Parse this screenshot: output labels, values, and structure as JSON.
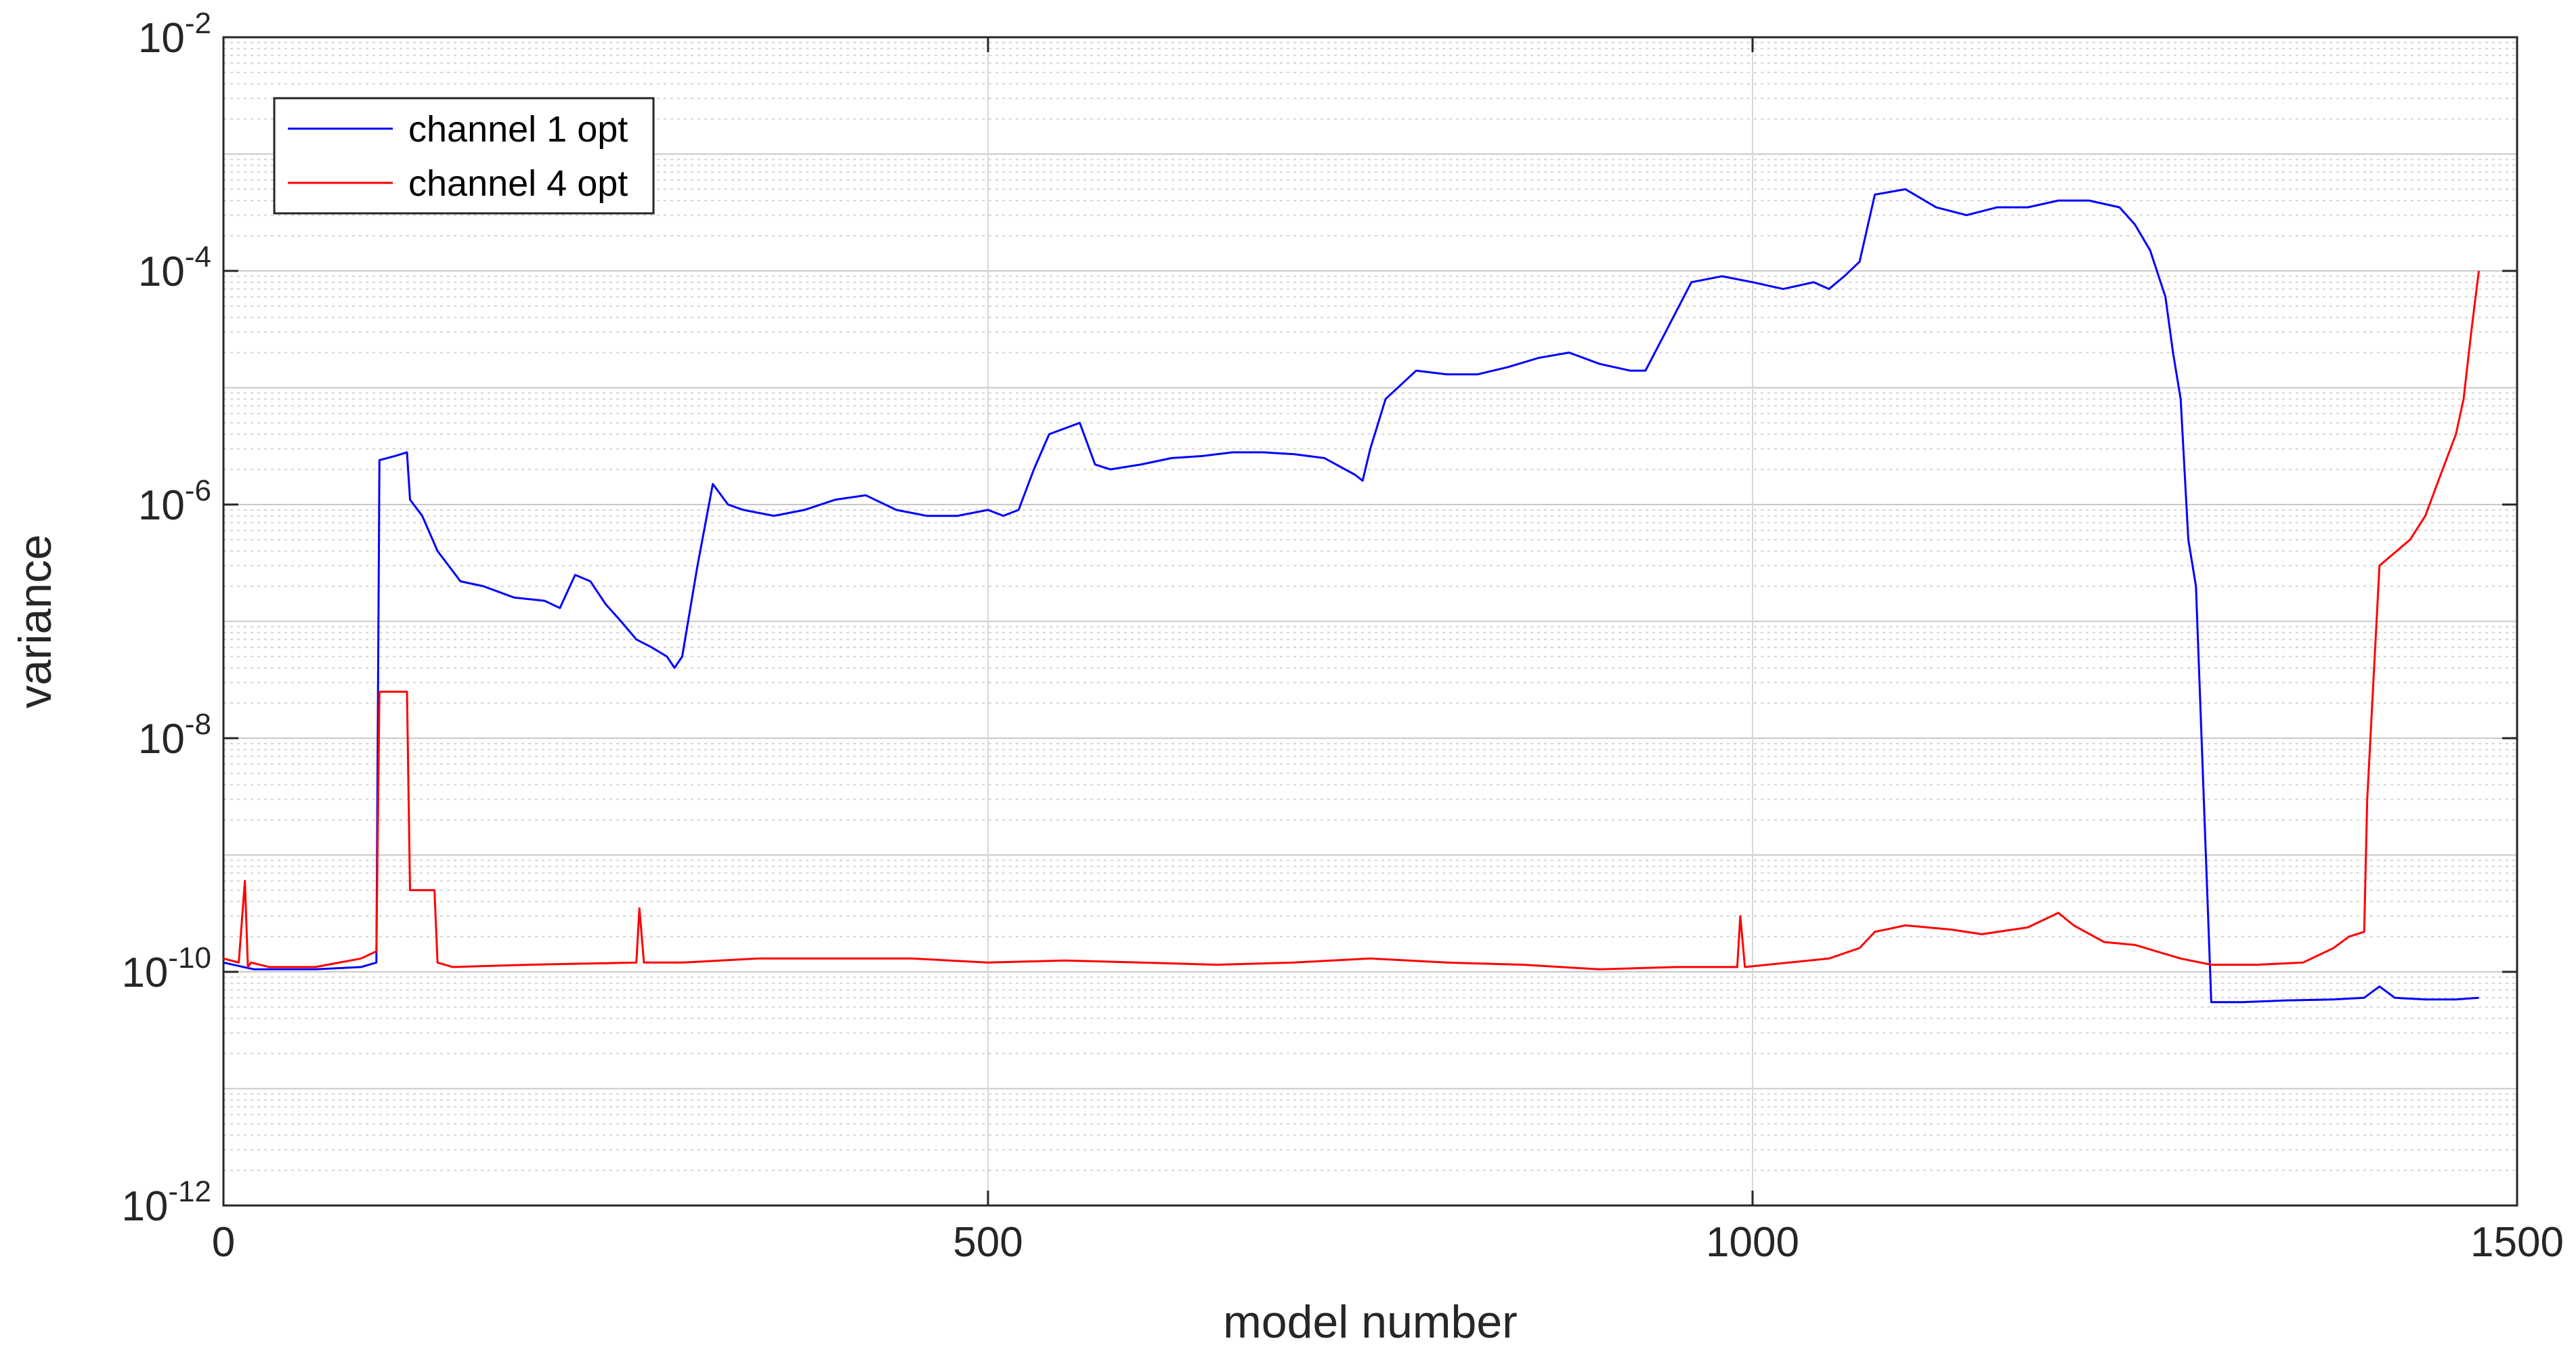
{
  "chart_data": {
    "type": "line",
    "xlabel": "model number",
    "ylabel": "variance",
    "xlim": [
      0,
      1500
    ],
    "ylim": [
      1e-12,
      0.01
    ],
    "yscale": "log",
    "grid": true,
    "legend_position": "top-left",
    "x_ticks": [
      {
        "value": 0,
        "label": "0"
      },
      {
        "value": 500,
        "label": "500"
      },
      {
        "value": 1000,
        "label": "1000"
      },
      {
        "value": 1500,
        "label": "1500"
      }
    ],
    "y_ticks": [
      {
        "value": 1e-12,
        "base": "10",
        "exp": "-12"
      },
      {
        "value": 1e-10,
        "base": "10",
        "exp": "-10"
      },
      {
        "value": 1e-08,
        "base": "10",
        "exp": "-8"
      },
      {
        "value": 1e-06,
        "base": "10",
        "exp": "-6"
      },
      {
        "value": 0.0001,
        "base": "10",
        "exp": "-4"
      },
      {
        "value": 0.01,
        "base": "10",
        "exp": "-2"
      }
    ],
    "series": [
      {
        "name": "channel 1 opt",
        "color": "#0000ff",
        "x": [
          0,
          20,
          60,
          90,
          100,
          102,
          112,
          120,
          122,
          130,
          140,
          155,
          170,
          190,
          210,
          220,
          230,
          240,
          250,
          260,
          270,
          280,
          290,
          295,
          300,
          310,
          320,
          330,
          340,
          360,
          380,
          400,
          420,
          440,
          460,
          480,
          500,
          510,
          520,
          530,
          540,
          560,
          570,
          580,
          600,
          620,
          640,
          660,
          680,
          700,
          720,
          740,
          745,
          750,
          760,
          780,
          800,
          820,
          840,
          860,
          880,
          900,
          920,
          930,
          940,
          960,
          980,
          1000,
          1020,
          1040,
          1050,
          1060,
          1070,
          1080,
          1100,
          1120,
          1140,
          1160,
          1180,
          1200,
          1220,
          1240,
          1250,
          1260,
          1270,
          1275,
          1280,
          1285,
          1290,
          1300,
          1320,
          1350,
          1380,
          1400,
          1410,
          1420,
          1440,
          1460,
          1475
        ],
        "y": [
          1.2e-10,
          1.05e-10,
          1.05e-10,
          1.1e-10,
          1.2e-10,
          2.4e-06,
          2.6e-06,
          2.8e-06,
          1.1e-06,
          8e-07,
          4e-07,
          2.2e-07,
          2e-07,
          1.6e-07,
          1.5e-07,
          1.3e-07,
          2.5e-07,
          2.2e-07,
          1.4e-07,
          1e-07,
          7e-08,
          6e-08,
          5e-08,
          4e-08,
          5e-08,
          3e-07,
          1.5e-06,
          1e-06,
          9e-07,
          8e-07,
          9e-07,
          1.1e-06,
          1.2e-06,
          9e-07,
          8e-07,
          8e-07,
          9e-07,
          8e-07,
          9e-07,
          2e-06,
          4e-06,
          5e-06,
          2.2e-06,
          2e-06,
          2.2e-06,
          2.5e-06,
          2.6e-06,
          2.8e-06,
          2.8e-06,
          2.7e-06,
          2.5e-06,
          1.8e-06,
          1.6e-06,
          3e-06,
          8e-06,
          1.4e-05,
          1.3e-05,
          1.3e-05,
          1.5e-05,
          1.8e-05,
          2e-05,
          1.6e-05,
          1.4e-05,
          1.4e-05,
          2.5e-05,
          8e-05,
          9e-05,
          8e-05,
          7e-05,
          8e-05,
          7e-05,
          9e-05,
          0.00012,
          0.00045,
          0.0005,
          0.00035,
          0.0003,
          0.00035,
          0.00035,
          0.0004,
          0.0004,
          0.00035,
          0.00025,
          0.00015,
          6e-05,
          2e-05,
          8e-06,
          5e-07,
          2e-07,
          5.5e-11,
          5.5e-11,
          5.7e-11,
          5.8e-11,
          6e-11,
          7.5e-11,
          6e-11,
          5.8e-11,
          5.8e-11,
          6e-11
        ]
      },
      {
        "name": "channel 4 opt",
        "color": "#ff0000",
        "x": [
          0,
          10,
          14,
          16,
          18,
          30,
          60,
          90,
          100,
          102,
          105,
          120,
          122,
          125,
          138,
          140,
          150,
          200,
          270,
          272,
          275,
          300,
          350,
          400,
          450,
          500,
          550,
          600,
          650,
          700,
          750,
          800,
          850,
          900,
          950,
          990,
          992,
          995,
          1050,
          1070,
          1080,
          1100,
          1130,
          1150,
          1180,
          1200,
          1210,
          1230,
          1250,
          1280,
          1300,
          1330,
          1360,
          1380,
          1390,
          1400,
          1402,
          1410,
          1430,
          1440,
          1450,
          1460,
          1465,
          1470,
          1475
        ],
        "y": [
          1.3e-10,
          1.2e-10,
          6e-10,
          1.1e-10,
          1.2e-10,
          1.1e-10,
          1.1e-10,
          1.3e-10,
          1.5e-10,
          2.5e-08,
          2.5e-08,
          2.5e-08,
          5e-10,
          5e-10,
          5e-10,
          1.2e-10,
          1.1e-10,
          1.15e-10,
          1.2e-10,
          3.5e-10,
          1.2e-10,
          1.2e-10,
          1.3e-10,
          1.3e-10,
          1.3e-10,
          1.2e-10,
          1.25e-10,
          1.2e-10,
          1.15e-10,
          1.2e-10,
          1.3e-10,
          1.2e-10,
          1.15e-10,
          1.05e-10,
          1.1e-10,
          1.1e-10,
          3e-10,
          1.1e-10,
          1.3e-10,
          1.6e-10,
          2.2e-10,
          2.5e-10,
          2.3e-10,
          2.1e-10,
          2.4e-10,
          3.2e-10,
          2.5e-10,
          1.8e-10,
          1.7e-10,
          1.3e-10,
          1.15e-10,
          1.15e-10,
          1.2e-10,
          1.6e-10,
          2e-10,
          2.2e-10,
          3e-09,
          3e-07,
          5e-07,
          8e-07,
          1.8e-06,
          4e-06,
          8e-06,
          3e-05,
          0.0001
        ]
      }
    ]
  }
}
